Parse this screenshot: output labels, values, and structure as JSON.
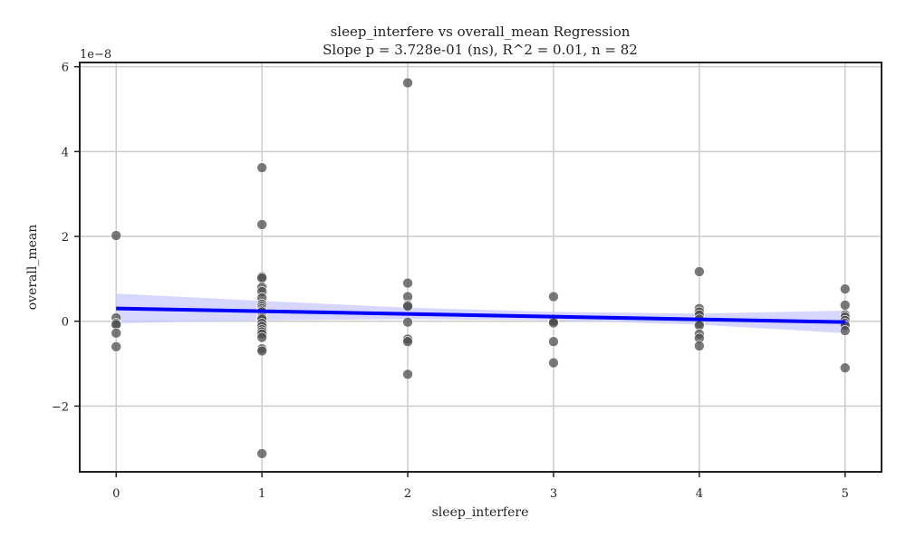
{
  "chart_data": {
    "type": "scatter",
    "title": "sleep_interfere vs overall_mean Regression",
    "subtitle": "Slope p = 3.728e-01 (ns), R^2 = 0.01, n = 82",
    "xlabel": "sleep_interfere",
    "ylabel": "overall_mean",
    "y_offset_label": "1e−8",
    "xlim": [
      -0.25,
      5.25
    ],
    "ylim": [
      -3.55,
      6.1
    ],
    "xticks": [
      0,
      1,
      2,
      3,
      4,
      5
    ],
    "yticks": [
      -2,
      0,
      2,
      4,
      6
    ],
    "ytick_labels": [
      "−2",
      "0",
      "2",
      "4",
      "6"
    ],
    "grid": true,
    "points": [
      [
        0,
        2.02
      ],
      [
        0,
        0.08
      ],
      [
        0,
        -0.05
      ],
      [
        0,
        -0.08
      ],
      [
        0,
        -0.28
      ],
      [
        0,
        -0.6
      ],
      [
        1,
        3.62
      ],
      [
        1,
        2.28
      ],
      [
        1,
        1.05
      ],
      [
        1,
        1.02
      ],
      [
        1,
        0.8
      ],
      [
        1,
        0.7
      ],
      [
        1,
        0.55
      ],
      [
        1,
        0.4
      ],
      [
        1,
        0.35
      ],
      [
        1,
        0.3
      ],
      [
        1,
        0.25
      ],
      [
        1,
        0.22
      ],
      [
        1,
        0.12
      ],
      [
        1,
        0.08
      ],
      [
        1,
        0.05
      ],
      [
        1,
        -0.05
      ],
      [
        1,
        -0.12
      ],
      [
        1,
        -0.2
      ],
      [
        1,
        -0.25
      ],
      [
        1,
        -0.3
      ],
      [
        1,
        -0.38
      ],
      [
        1,
        -0.65
      ],
      [
        1,
        -0.7
      ],
      [
        1,
        -3.12
      ],
      [
        2,
        5.62
      ],
      [
        2,
        0.9
      ],
      [
        2,
        0.58
      ],
      [
        2,
        0.38
      ],
      [
        2,
        0.35
      ],
      [
        2,
        -0.02
      ],
      [
        2,
        -0.42
      ],
      [
        2,
        -0.48
      ],
      [
        2,
        -1.25
      ],
      [
        3,
        0.58
      ],
      [
        3,
        0.05
      ],
      [
        3,
        0.02
      ],
      [
        3,
        0.0
      ],
      [
        3,
        -0.04
      ],
      [
        3,
        -0.48
      ],
      [
        3,
        -0.98
      ],
      [
        4,
        1.17
      ],
      [
        4,
        0.3
      ],
      [
        4,
        0.22
      ],
      [
        4,
        0.15
      ],
      [
        4,
        0.05
      ],
      [
        4,
        -0.05
      ],
      [
        4,
        -0.1
      ],
      [
        4,
        -0.3
      ],
      [
        4,
        -0.4
      ],
      [
        4,
        -0.58
      ],
      [
        5,
        0.76
      ],
      [
        5,
        0.38
      ],
      [
        5,
        0.15
      ],
      [
        5,
        0.1
      ],
      [
        5,
        0.02
      ],
      [
        5,
        -0.05
      ],
      [
        5,
        -0.1
      ],
      [
        5,
        -0.22
      ],
      [
        5,
        -1.1
      ]
    ],
    "regression": {
      "x": [
        0,
        5
      ],
      "y": [
        0.3,
        -0.02
      ]
    },
    "confidence_band": {
      "x": [
        0,
        1,
        2,
        3,
        4,
        5
      ],
      "lower": [
        -0.05,
        0.02,
        0.05,
        0.02,
        -0.08,
        -0.28
      ],
      "upper": [
        0.65,
        0.48,
        0.32,
        0.22,
        0.18,
        0.25
      ]
    },
    "colors": {
      "points": "#4d4d4d",
      "line": "#0000ff",
      "band": "#c8c8ff",
      "grid": "#cccccc",
      "axis": "#222222"
    }
  }
}
